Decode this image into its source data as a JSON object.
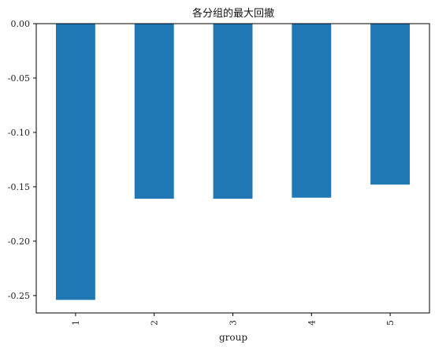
{
  "chart_data": {
    "type": "bar",
    "title": "各分组的最大回撤",
    "xlabel": "group",
    "ylabel": "",
    "categories": [
      "1",
      "2",
      "3",
      "4",
      "5"
    ],
    "values": [
      -0.254,
      -0.161,
      -0.161,
      -0.16,
      -0.148
    ],
    "ylim": [
      -0.266,
      0.0
    ],
    "yticks": [
      "0.00",
      "-0.05",
      "-0.10",
      "-0.15",
      "-0.20",
      "-0.25"
    ],
    "ytick_values": [
      0.0,
      -0.05,
      -0.1,
      -0.15,
      -0.2,
      -0.25
    ],
    "bar_color": "#1f77b4",
    "grid": false,
    "legend": false
  }
}
